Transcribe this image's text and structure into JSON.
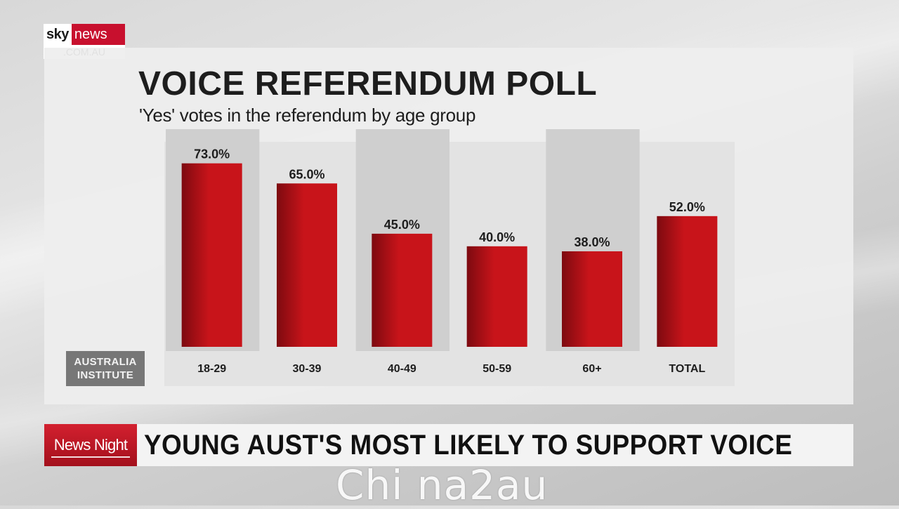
{
  "branding": {
    "logo_sky": "sky",
    "logo_news": "news",
    "logo_domain": ".COM.AU",
    "logo_red": "#c8102e"
  },
  "chart_data": {
    "type": "bar",
    "title": "VOICE REFERENDUM POLL",
    "subtitle": "'Yes' votes in the referendum by age group",
    "categories": [
      "18-29",
      "30-39",
      "40-49",
      "50-59",
      "60+",
      "TOTAL"
    ],
    "values": [
      73.0,
      65.0,
      45.0,
      40.0,
      38.0,
      52.0
    ],
    "value_labels": [
      "73.0%",
      "65.0%",
      "45.0%",
      "40.0%",
      "38.0%",
      "52.0%"
    ],
    "ylim": [
      0,
      81
    ],
    "grid": false,
    "bar_color": "#c8141a",
    "source": "AUSTRALIA INSTITUTE"
  },
  "lower_third": {
    "show_name": "News Night",
    "headline": "YOUNG AUST'S MOST LIKELY TO SUPPORT VOICE"
  },
  "watermark": "Chi na2au"
}
